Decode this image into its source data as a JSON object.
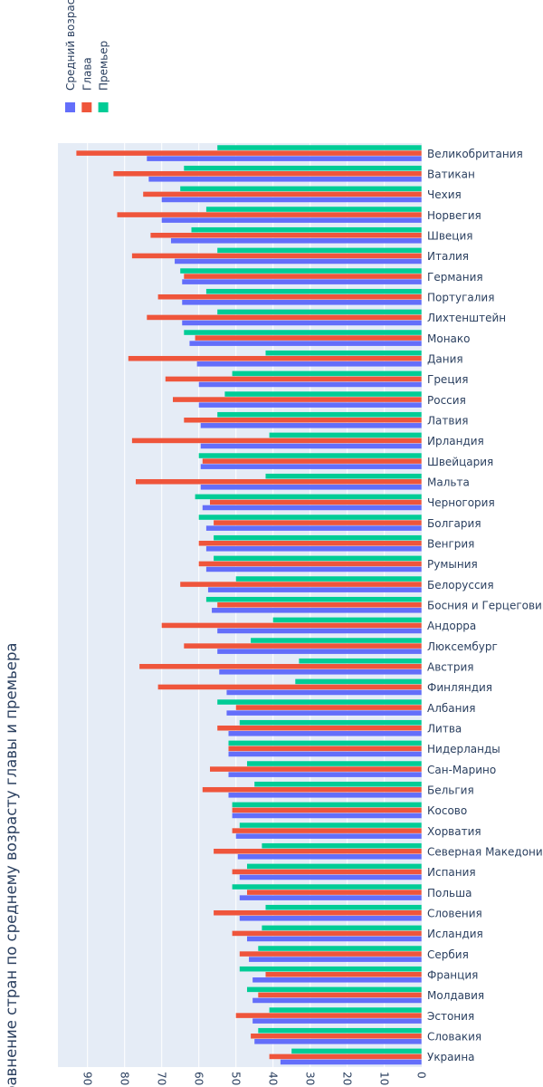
{
  "chart_data": {
    "type": "bar",
    "orientation": "horizontal",
    "title": "Сравнение стран по среднему возрасту главы и премьера",
    "xlabel": "",
    "ylabel": "",
    "xlim": [
      0,
      98
    ],
    "x_reversed": true,
    "x_ticks": [
      0,
      10,
      20,
      30,
      40,
      50,
      60,
      70,
      80,
      90
    ],
    "grid": true,
    "legend_position": "top-left",
    "categories": [
      "Великобритания",
      "Ватикан",
      "Чехия",
      "Норвегия",
      "Швеция",
      "Италия",
      "Германия",
      "Португалия",
      "Лихтенштейн",
      "Монако",
      "Дания",
      "Греция",
      "Россия",
      "Латвия",
      "Ирландия",
      "Швейцария",
      "Мальта",
      "Черногория",
      "Болгария",
      "Венгрия",
      "Румыния",
      "Белоруссия",
      "Босния и Герцеговина",
      "Андорра",
      "Люксембург",
      "Австрия",
      "Финляндия",
      "Албания",
      "Литва",
      "Нидерланды",
      "Сан-Марино",
      "Бельгия",
      "Косово",
      "Хорватия",
      "Северная Македония",
      "Испания",
      "Польша",
      "Словения",
      "Исландия",
      "Сербия",
      "Франция",
      "Молдавия",
      "Эстония",
      "Словакия",
      "Украина"
    ],
    "series": [
      {
        "name": "Средний возраст",
        "color": "#636efa",
        "values": [
          74,
          73.5,
          70,
          70,
          67.5,
          66.5,
          64.5,
          64.5,
          64.5,
          62.5,
          60.5,
          60,
          60,
          59.5,
          59.5,
          59.5,
          59.5,
          59,
          58,
          58,
          58,
          57.5,
          56.5,
          55,
          55,
          54.5,
          52.5,
          52.5,
          52,
          52,
          52,
          52,
          51,
          50,
          49.5,
          49,
          49,
          49,
          47,
          46.5,
          45.5,
          45.5,
          45.5,
          45,
          38
        ]
      },
      {
        "name": "Глава",
        "color": "#ef553b",
        "values": [
          93,
          83,
          75,
          82,
          73,
          78,
          64,
          71,
          74,
          61,
          79,
          69,
          67,
          64,
          78,
          59,
          77,
          57,
          56,
          60,
          60,
          65,
          55,
          70,
          64,
          76,
          71,
          50,
          55,
          52,
          57,
          59,
          51,
          51,
          56,
          51,
          47,
          56,
          51,
          49,
          42,
          44,
          50,
          46,
          41
        ]
      },
      {
        "name": "Премьер",
        "color": "#00cc96",
        "values": [
          55,
          64,
          65,
          58,
          62,
          55,
          65,
          58,
          55,
          64,
          42,
          51,
          53,
          55,
          41,
          60,
          42,
          61,
          60,
          56,
          56,
          50,
          58,
          40,
          46,
          33,
          34,
          55,
          49,
          52,
          47,
          45,
          51,
          49,
          43,
          47,
          51,
          42,
          43,
          44,
          49,
          47,
          41,
          44,
          35
        ]
      }
    ]
  }
}
